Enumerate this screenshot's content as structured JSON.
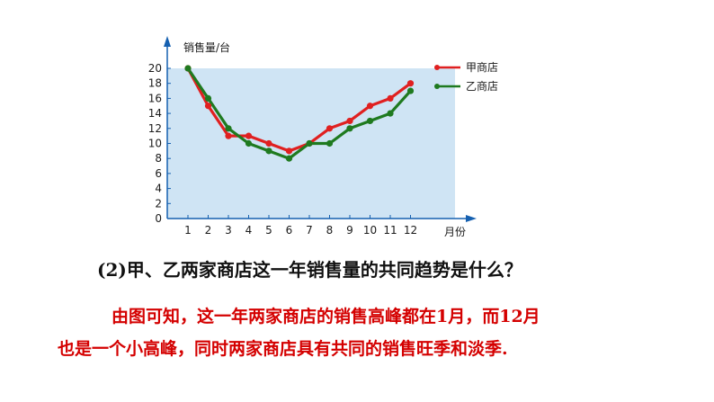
{
  "chart_data": {
    "type": "line",
    "ylabel": "销售量/台",
    "xlabel": "月份",
    "categories": [
      "1",
      "2",
      "3",
      "4",
      "5",
      "6",
      "7",
      "8",
      "9",
      "10",
      "11",
      "12"
    ],
    "yticks": [
      "0",
      "2",
      "4",
      "6",
      "8",
      "10",
      "12",
      "14",
      "16",
      "18",
      "20"
    ],
    "ylim": [
      0,
      20
    ],
    "grid": false,
    "legend_position": "top-right",
    "series": [
      {
        "name": "甲商店",
        "color": "#e02020",
        "values": [
          20,
          15,
          11,
          11,
          10,
          9,
          10,
          12,
          13,
          15,
          16,
          18
        ]
      },
      {
        "name": "乙商店",
        "color": "#1f7a1f",
        "values": [
          20,
          16,
          12,
          10,
          9,
          8,
          10,
          10,
          12,
          13,
          14,
          17
        ]
      }
    ]
  },
  "question": "(2)甲、乙两家商店这一年销售量的共同趋势是什么？",
  "answer_lines": [
    "由图可知，这一年两家商店的销售高峰都在1月，而12月",
    "也是一个小高峰，同时两家商店具有共同的销售旺季和淡季."
  ],
  "colors": {
    "plot_bg": "#cfe4f4",
    "axis": "#1560b0",
    "answer_text": "#d40000"
  }
}
